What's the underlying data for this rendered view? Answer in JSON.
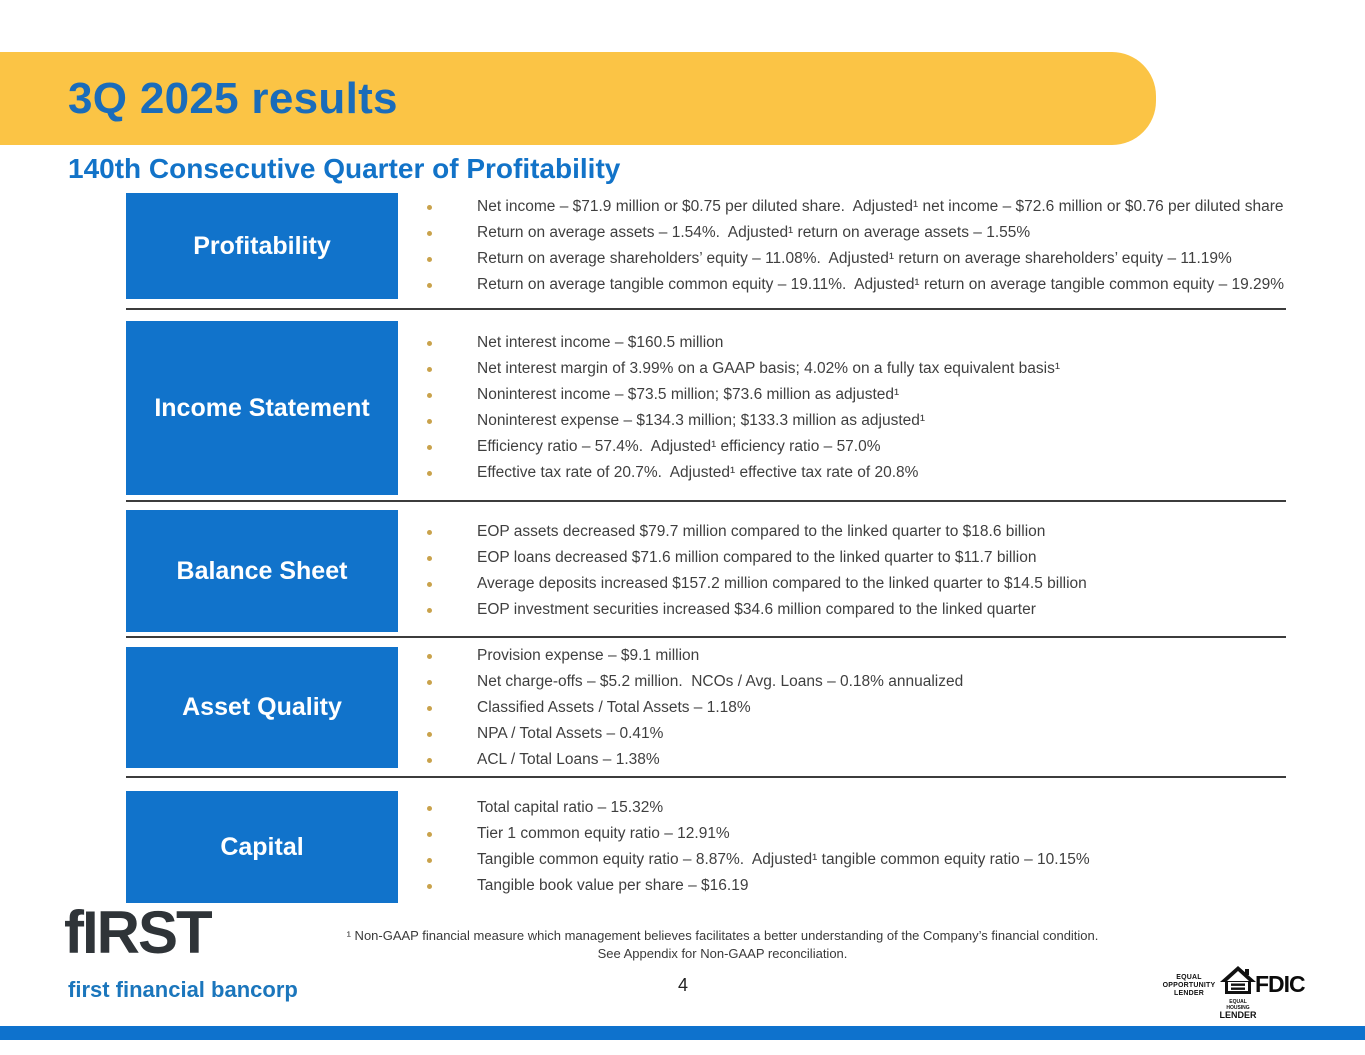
{
  "slide": {
    "title": "3Q 2025 results",
    "subtitle": "140th Consecutive Quarter of Profitability",
    "page_number": "4",
    "footnote_line1": "¹ Non-GAAP financial measure which management believes facilitates a better understanding of the Company’s financial condition.",
    "footnote_line2": "See Appendix for Non-GAAP reconciliation."
  },
  "sections": [
    {
      "label": "Profitability",
      "bullets": [
        "Net income – $71.9 million or $0.75 per diluted share.  Adjusted¹ net income – $72.6 million or $0.76 per diluted share",
        "Return on average assets – 1.54%.  Adjusted¹ return on average assets – 1.55%",
        "Return on average shareholders’ equity – 11.08%.  Adjusted¹ return on average shareholders’ equity – 11.19%",
        "Return on average tangible common equity – 19.11%.  Adjusted¹ return on average tangible common equity – 19.29%"
      ]
    },
    {
      "label": "Income Statement",
      "bullets": [
        "Net interest income – $160.5 million",
        "Net interest margin of 3.99% on a GAAP basis; 4.02% on a fully tax equivalent basis¹",
        "Noninterest income – $73.5 million; $73.6 million as adjusted¹",
        "Noninterest expense – $134.3 million; $133.3 million as adjusted¹",
        "Efficiency ratio – 57.4%.  Adjusted¹ efficiency ratio – 57.0%",
        "Effective tax rate of 20.7%.  Adjusted¹ effective tax rate of 20.8%"
      ]
    },
    {
      "label": "Balance Sheet",
      "bullets": [
        "EOP assets decreased $79.7 million compared to the linked quarter to $18.6 billion",
        "EOP loans decreased $71.6 million compared to the linked quarter to $11.7 billion",
        "Average deposits increased $157.2 million compared to the linked quarter to $14.5 billion",
        "EOP investment securities increased $34.6 million compared to the linked quarter"
      ]
    },
    {
      "label": "Asset Quality",
      "bullets": [
        "Provision expense – $9.1 million",
        "Net charge-offs – $5.2 million.  NCOs / Avg. Loans – 0.18% annualized",
        "Classified Assets / Total Assets – 1.18%",
        "NPA / Total Assets – 0.41%",
        "ACL / Total Loans – 1.38%"
      ]
    },
    {
      "label": "Capital",
      "bullets": [
        "Total capital ratio – 15.32%",
        "Tier 1 common equity ratio – 12.91%",
        "Tangible common equity ratio – 8.87%.  Adjusted¹ tangible common equity ratio – 10.15%",
        "Tangible book value per share – $16.19"
      ]
    }
  ],
  "footer": {
    "logo_text": "fIRST",
    "logo_subtext": "first financial bancorp",
    "equal_opportunity_lines": [
      "EQUAL",
      "OPPORTUNITY",
      "LENDER"
    ],
    "equal_housing_line1": "EQUAL HOUSING",
    "equal_housing_line2": "LENDER",
    "fdic_label": "FDIC"
  },
  "colors": {
    "banner_yellow": "#FBC445",
    "title_blue": "#1A6CBA",
    "subtitle_blue": "#1273C8",
    "box_blue": "#1173CB",
    "bottom_bar_blue": "#0E72CD",
    "bullet_dot_gold": "#C9A24B",
    "body_text": "#3F3F3F",
    "logo_dark": "#2F3438",
    "logo_sub_blue": "#1B76BC"
  }
}
